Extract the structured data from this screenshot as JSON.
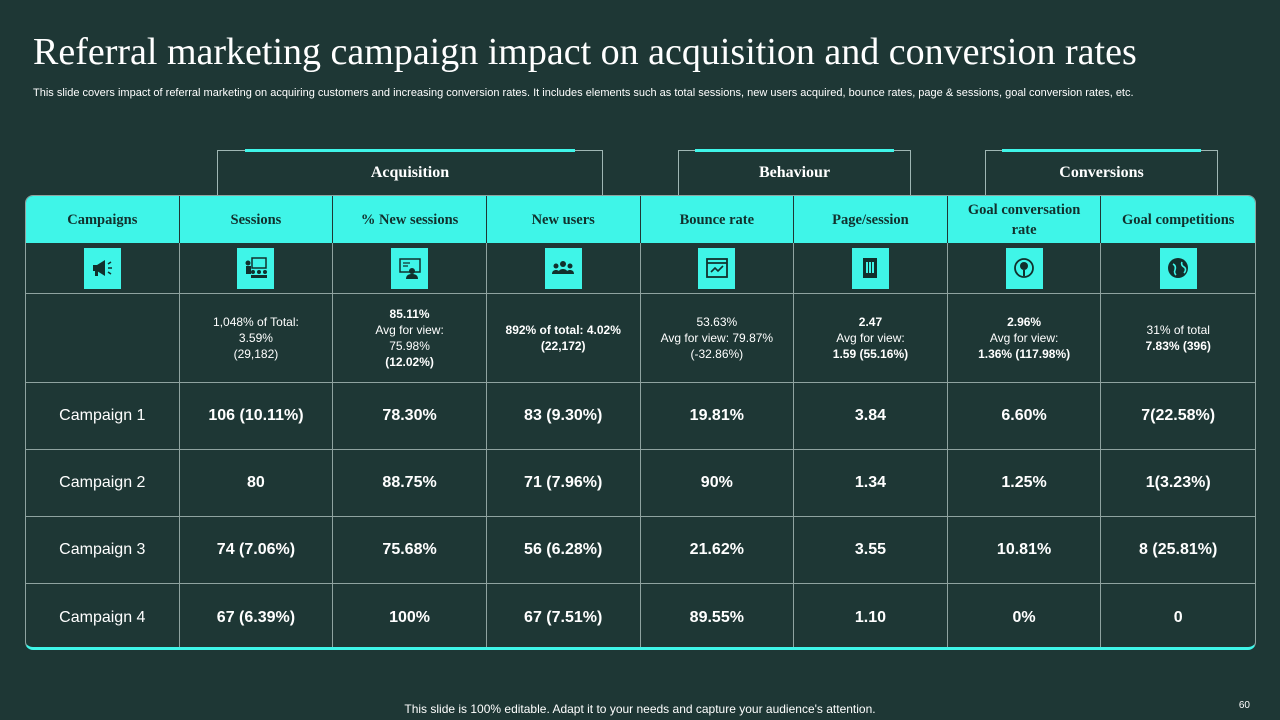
{
  "title": "Referral marketing campaign impact on acquisition and conversion rates",
  "subtitle": "This slide covers impact of referral marketing on acquiring customers and increasing conversion rates. It includes elements such as total sessions, new users acquired, bounce rates, page & sessions, goal conversion rates, etc.",
  "groups": {
    "acquisition": "Acquisition",
    "behaviour": "Behaviour",
    "conversions": "Conversions"
  },
  "headers": [
    "Campaigns",
    "Sessions",
    "% New sessions",
    "New users",
    "Bounce rate",
    "Page/session",
    "Goal conversation rate",
    "Goal competitions"
  ],
  "icons": [
    "megaphone-icon",
    "presentation-icon",
    "user-screen-icon",
    "team-icon",
    "browser-icon",
    "document-icon",
    "target-icon",
    "globe-icon"
  ],
  "summary": {
    "sessions": [
      "1,048% of Total:",
      "3.59%",
      "(29,182)"
    ],
    "new_sessions": [
      "85.11%",
      "Avg for view:",
      "75.98%",
      "(12.02%)"
    ],
    "new_users": "892% of total: 4.02% (22,172)",
    "bounce_rate": [
      "53.63%",
      "Avg for view: 79.87%",
      "(-32.86%)"
    ],
    "page_session": [
      "2.47",
      "Avg for view:",
      "1.59 (55.16%)"
    ],
    "goal_conversion": [
      "2.96%",
      "Avg for view:",
      "1.36% (117.98%)"
    ],
    "goal_completions": [
      "31% of total",
      "7.83% (396)"
    ]
  },
  "rows": [
    {
      "name": "Campaign 1",
      "sessions": "106 (10.11%)",
      "new_sessions": "78.30%",
      "new_users": "83 (9.30%)",
      "bounce": "19.81%",
      "page": "3.84",
      "conversion": "6.60%",
      "completions": "7(22.58%)"
    },
    {
      "name": "Campaign 2",
      "sessions": "80",
      "new_sessions": "88.75%",
      "new_users": "71 (7.96%)",
      "bounce": "90%",
      "page": "1.34",
      "conversion": "1.25%",
      "completions": "1(3.23%)"
    },
    {
      "name": "Campaign 3",
      "sessions": "74 (7.06%)",
      "new_sessions": "75.68%",
      "new_users": "56 (6.28%)",
      "bounce": "21.62%",
      "page": "3.55",
      "conversion": "10.81%",
      "completions": "8 (25.81%)"
    },
    {
      "name": "Campaign 4",
      "sessions": "67 (6.39%)",
      "new_sessions": "100%",
      "new_users": "67 (7.51%)",
      "bounce": "89.55%",
      "page": "1.10",
      "conversion": "0%",
      "completions": "0"
    }
  ],
  "footer": "This slide is 100% editable. Adapt it to your needs and capture your audience's attention.",
  "page_number": "60",
  "colors": {
    "background": "#1e3735",
    "accent": "#3ff5e8"
  }
}
